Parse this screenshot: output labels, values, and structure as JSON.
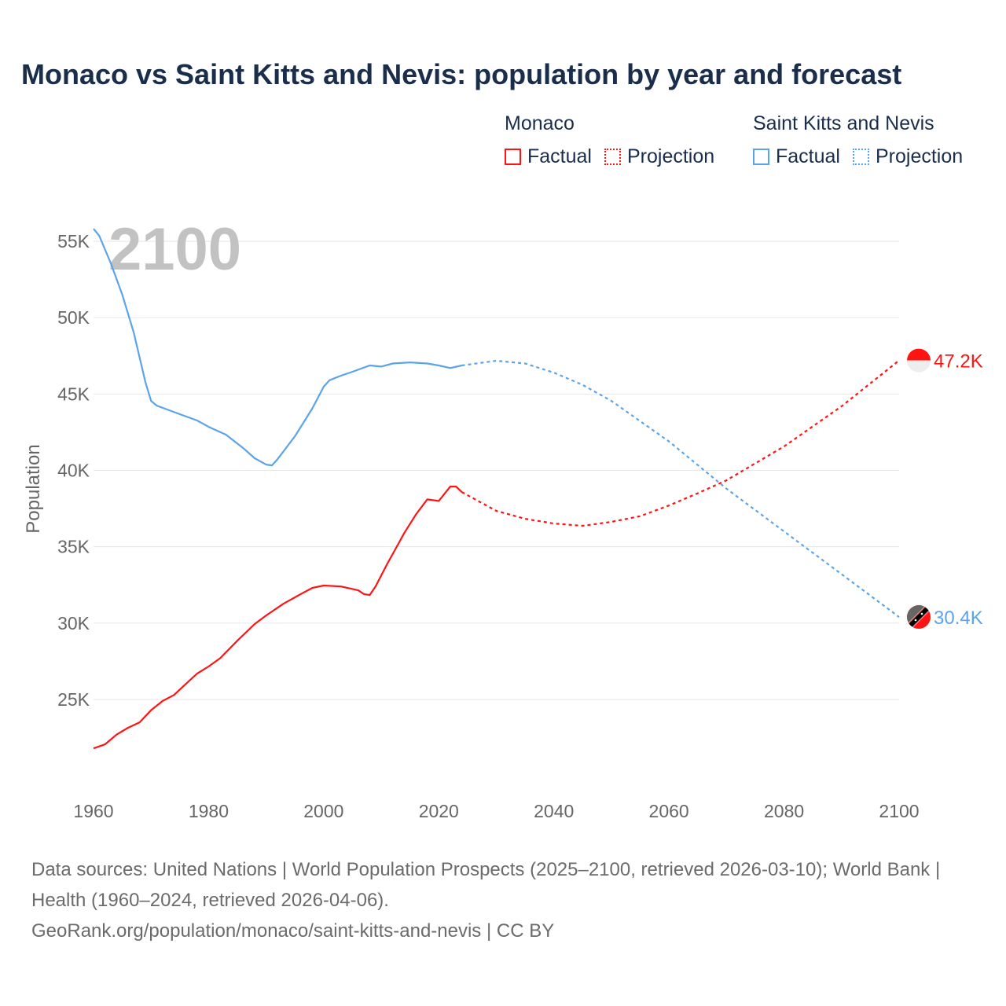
{
  "chart_data": {
    "type": "line",
    "title": "Monaco vs Saint Kitts and Nevis: population by year and forecast",
    "xlabel": "",
    "ylabel": "Population",
    "xlim": [
      1960,
      2100
    ],
    "ylim": [
      20000,
      57000
    ],
    "x_ticks": [
      "1960",
      "1980",
      "2000",
      "2020",
      "2040",
      "2060",
      "2080",
      "2100"
    ],
    "x_tick_values": [
      1960,
      1980,
      2000,
      2020,
      2040,
      2060,
      2080,
      2100
    ],
    "y_ticks": [
      "25K",
      "30K",
      "35K",
      "40K",
      "45K",
      "50K",
      "55K"
    ],
    "y_tick_values": [
      25000,
      30000,
      35000,
      40000,
      45000,
      50000,
      55000
    ],
    "grid": true,
    "year_watermark": "2100",
    "legend": {
      "placement": "top-right",
      "groups": [
        {
          "name": "Monaco",
          "items": [
            "Factual",
            "Projection"
          ]
        },
        {
          "name": "Saint Kitts and Nevis",
          "items": [
            "Factual",
            "Projection"
          ]
        }
      ]
    },
    "series": [
      {
        "name": "Monaco",
        "color": "#ff1414",
        "end_label": "47.2K",
        "factual": {
          "x": [
            1960,
            1962,
            1964,
            1966,
            1968,
            1970,
            1972,
            1974,
            1976,
            1978,
            1980,
            1982,
            1985,
            1988,
            1990,
            1993,
            1996,
            1998,
            2000,
            2003,
            2006,
            2007,
            2008,
            2009,
            2011,
            2014,
            2016,
            2018,
            2020,
            2022,
            2023,
            2024
          ],
          "y": [
            21800,
            22060,
            22700,
            23150,
            23500,
            24300,
            24900,
            25300,
            26000,
            26700,
            27160,
            27700,
            28850,
            29940,
            30500,
            31270,
            31900,
            32300,
            32460,
            32400,
            32150,
            31900,
            31840,
            32400,
            33850,
            35900,
            37100,
            38100,
            38000,
            38940,
            38940,
            38580
          ]
        },
        "projection": {
          "x": [
            2024,
            2030,
            2035,
            2040,
            2045,
            2050,
            2055,
            2060,
            2065,
            2070,
            2080,
            2090,
            2100
          ],
          "y": [
            38580,
            37350,
            36830,
            36520,
            36370,
            36630,
            37000,
            37700,
            38500,
            39350,
            41570,
            44200,
            47200
          ]
        }
      },
      {
        "name": "Saint Kitts and Nevis",
        "color": "#5ba4ea",
        "end_label": "30.4K",
        "factual": {
          "x": [
            1960,
            1961,
            1963,
            1965,
            1967,
            1969,
            1970,
            1971,
            1975,
            1978,
            1980,
            1983,
            1986,
            1988,
            1990,
            1991,
            1992,
            1995,
            1998,
            2000,
            2001,
            2003,
            2005,
            2008,
            2010,
            2012,
            2015,
            2018,
            2020,
            2022,
            2024
          ],
          "y": [
            55820,
            55360,
            53560,
            51500,
            49000,
            45800,
            44550,
            44240,
            43680,
            43270,
            42850,
            42340,
            41460,
            40800,
            40380,
            40330,
            40740,
            42240,
            44040,
            45480,
            45900,
            46200,
            46460,
            46870,
            46800,
            47000,
            47070,
            47000,
            46870,
            46700,
            46870
          ]
        },
        "projection": {
          "x": [
            2024,
            2030,
            2035,
            2040,
            2045,
            2050,
            2060,
            2070,
            2080,
            2090,
            2100
          ],
          "y": [
            46870,
            47180,
            47000,
            46400,
            45600,
            44550,
            41900,
            38800,
            36000,
            33200,
            30400
          ]
        }
      }
    ]
  },
  "footer": {
    "line1": "Data sources: United Nations | World Population Prospects (2025–2100, retrieved 2026-03-10); World Bank | Health (1960–2024, retrieved 2026-04-06).",
    "line2": "GeoRank.org/population/monaco/saint-kitts-and-nevis | CC BY"
  }
}
